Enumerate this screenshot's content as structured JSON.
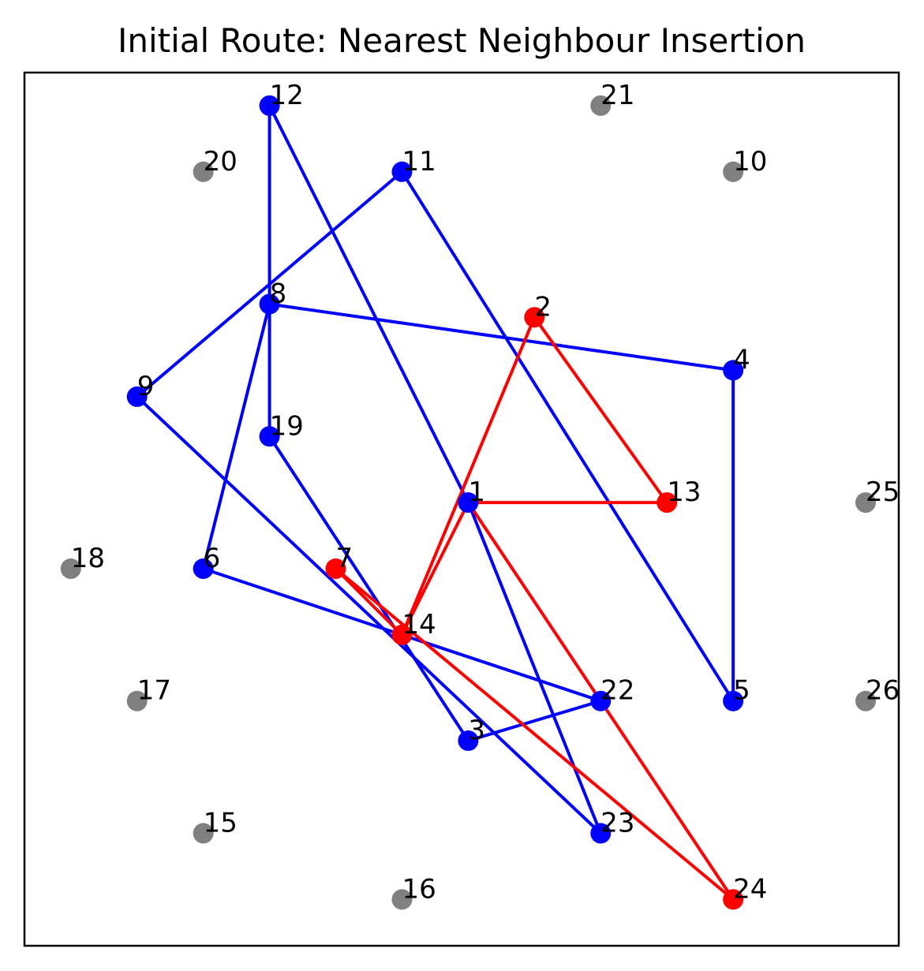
{
  "title": "Initial Route: Nearest Neighbour Insertion",
  "colors": {
    "route_blue": "#0000ff",
    "route_red": "#ff0000",
    "unvisited": "#808080",
    "frame": "#000000"
  },
  "chart_data": {
    "type": "scatter",
    "title": "Initial Route: Nearest Neighbour Insertion",
    "xlim": [
      0.3,
      13.5
    ],
    "ylim": [
      0.3,
      13.5
    ],
    "axes_visible": false,
    "nodes": [
      {
        "id": "1",
        "x": 7,
        "y": 7,
        "group": "blue"
      },
      {
        "id": "2",
        "x": 8,
        "y": 9.8,
        "group": "red"
      },
      {
        "id": "3",
        "x": 7,
        "y": 3.4,
        "group": "blue"
      },
      {
        "id": "4",
        "x": 11,
        "y": 9,
        "group": "blue"
      },
      {
        "id": "5",
        "x": 11,
        "y": 4,
        "group": "blue"
      },
      {
        "id": "6",
        "x": 3,
        "y": 6,
        "group": "blue"
      },
      {
        "id": "7",
        "x": 5,
        "y": 6,
        "group": "red"
      },
      {
        "id": "8",
        "x": 4,
        "y": 10,
        "group": "blue"
      },
      {
        "id": "9",
        "x": 2,
        "y": 8.6,
        "group": "blue"
      },
      {
        "id": "10",
        "x": 11,
        "y": 12,
        "group": "gray"
      },
      {
        "id": "11",
        "x": 6,
        "y": 12,
        "group": "blue"
      },
      {
        "id": "12",
        "x": 4,
        "y": 13,
        "group": "blue"
      },
      {
        "id": "13",
        "x": 10,
        "y": 7,
        "group": "red"
      },
      {
        "id": "14",
        "x": 6,
        "y": 5,
        "group": "red"
      },
      {
        "id": "15",
        "x": 3,
        "y": 2,
        "group": "gray"
      },
      {
        "id": "16",
        "x": 6,
        "y": 1,
        "group": "gray"
      },
      {
        "id": "17",
        "x": 2,
        "y": 4,
        "group": "gray"
      },
      {
        "id": "18",
        "x": 1,
        "y": 6,
        "group": "gray"
      },
      {
        "id": "19",
        "x": 4,
        "y": 8,
        "group": "blue"
      },
      {
        "id": "20",
        "x": 3,
        "y": 12,
        "group": "gray"
      },
      {
        "id": "21",
        "x": 9,
        "y": 13,
        "group": "gray"
      },
      {
        "id": "22",
        "x": 9,
        "y": 4,
        "group": "blue"
      },
      {
        "id": "23",
        "x": 9,
        "y": 2,
        "group": "blue"
      },
      {
        "id": "24",
        "x": 11,
        "y": 1,
        "group": "red"
      },
      {
        "id": "25",
        "x": 13,
        "y": 7,
        "group": "gray"
      },
      {
        "id": "26",
        "x": 13,
        "y": 4,
        "group": "gray"
      }
    ],
    "routes": [
      {
        "color": "blue",
        "stops": [
          "1",
          "12",
          "8",
          "4",
          "5",
          "11",
          "9",
          "23",
          "1"
        ]
      },
      {
        "color": "blue",
        "stops": [
          "8",
          "19",
          "3",
          "22",
          "6",
          "8"
        ]
      },
      {
        "color": "red",
        "stops": [
          "1",
          "13",
          "2",
          "14",
          "1",
          "24",
          "7",
          "14"
        ]
      }
    ]
  }
}
